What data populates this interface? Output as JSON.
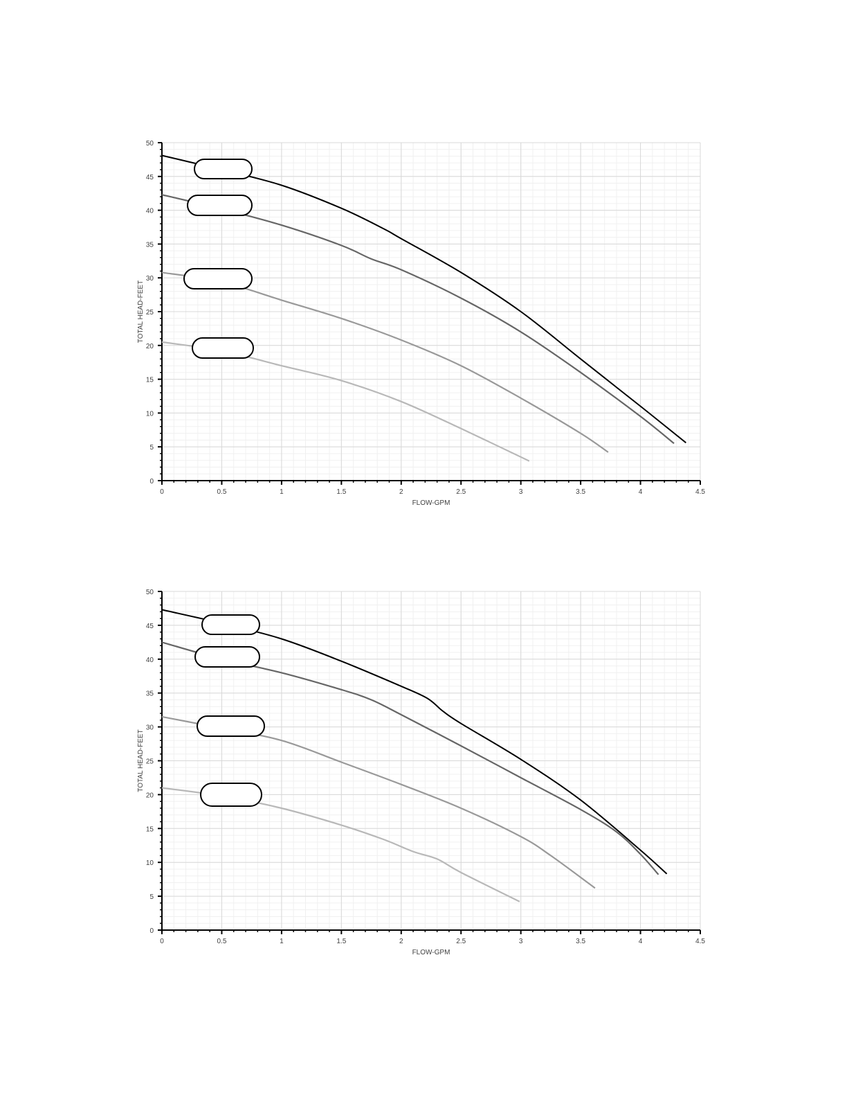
{
  "chart_data": [
    {
      "type": "line",
      "title": "",
      "xlabel": "FLOW-GPM",
      "ylabel": "TOTAL HEAD-FEET",
      "xlim": [
        0,
        4.5
      ],
      "ylim": [
        0,
        50
      ],
      "x_ticks": [
        "0",
        "0.5",
        "1",
        "1.5",
        "2",
        "2.5",
        "3",
        "3.5",
        "4",
        "4.5"
      ],
      "y_ticks": [
        "0",
        "5",
        "10",
        "15",
        "20",
        "25",
        "30",
        "35",
        "40",
        "45",
        "50"
      ],
      "grid": true,
      "series": [
        {
          "color": "#000000",
          "x": [
            0,
            0.5,
            1.0,
            1.5,
            1.85,
            2.0,
            2.5,
            3.0,
            3.5,
            4.0,
            4.38
          ],
          "y": [
            48.1,
            46.0,
            43.7,
            40.3,
            37.3,
            35.8,
            30.8,
            25.0,
            18.0,
            11.0,
            5.6
          ]
        },
        {
          "color": "#666666",
          "x": [
            0,
            0.5,
            1.0,
            1.5,
            1.75,
            2.0,
            2.5,
            3.0,
            3.5,
            4.0,
            4.28
          ],
          "y": [
            42.3,
            40.2,
            37.8,
            34.8,
            32.8,
            31.2,
            27.0,
            22.0,
            16.0,
            9.5,
            5.5
          ]
        },
        {
          "color": "#999999",
          "x": [
            0,
            0.5,
            1.0,
            1.5,
            2.0,
            2.5,
            3.0,
            3.5,
            3.73
          ],
          "y": [
            30.8,
            29.4,
            26.7,
            24.0,
            20.8,
            17.0,
            12.2,
            7.0,
            4.2
          ]
        },
        {
          "color": "#b8b8b8",
          "x": [
            0,
            0.5,
            1.0,
            1.5,
            2.0,
            2.5,
            3.07
          ],
          "y": [
            20.5,
            19.2,
            17.0,
            14.8,
            11.7,
            7.7,
            2.9
          ]
        }
      ],
      "label_boxes": 4
    },
    {
      "type": "line",
      "title": "",
      "xlabel": "FLOW-GPM",
      "ylabel": "TOTAL HEAD-FEET",
      "xlim": [
        0,
        4.5
      ],
      "ylim": [
        0,
        50
      ],
      "x_ticks": [
        "0",
        "0.5",
        "1",
        "1.5",
        "2",
        "2.5",
        "3",
        "3.5",
        "4",
        "4.5"
      ],
      "y_ticks": [
        "0",
        "5",
        "10",
        "15",
        "20",
        "25",
        "30",
        "35",
        "40",
        "45",
        "50"
      ],
      "grid": true,
      "series": [
        {
          "color": "#000000",
          "x": [
            0,
            0.5,
            1.0,
            1.5,
            2.0,
            2.22,
            2.35,
            2.5,
            3.0,
            3.5,
            4.0,
            4.22
          ],
          "y": [
            47.3,
            45.3,
            43.0,
            39.7,
            36.0,
            34.2,
            32.3,
            30.5,
            25.2,
            19.2,
            11.8,
            8.3
          ]
        },
        {
          "color": "#666666",
          "x": [
            0,
            0.5,
            1.0,
            1.5,
            1.75,
            2.0,
            2.5,
            3.0,
            3.5,
            3.8,
            4.0,
            4.15
          ],
          "y": [
            42.5,
            40.0,
            38.0,
            35.5,
            34.0,
            31.8,
            27.2,
            22.5,
            17.8,
            14.5,
            11.2,
            8.2
          ]
        },
        {
          "color": "#999999",
          "x": [
            0,
            0.5,
            1.0,
            1.5,
            2.0,
            2.5,
            3.0,
            3.25,
            3.62
          ],
          "y": [
            31.5,
            29.8,
            28.0,
            24.8,
            21.5,
            18.0,
            13.8,
            11.0,
            6.2
          ]
        },
        {
          "color": "#b8b8b8",
          "x": [
            0,
            0.5,
            1.0,
            1.5,
            1.85,
            2.1,
            2.3,
            2.5,
            2.99
          ],
          "y": [
            21.0,
            19.8,
            18.0,
            15.5,
            13.4,
            11.6,
            10.5,
            8.5,
            4.2
          ]
        }
      ],
      "label_boxes": 4
    }
  ]
}
